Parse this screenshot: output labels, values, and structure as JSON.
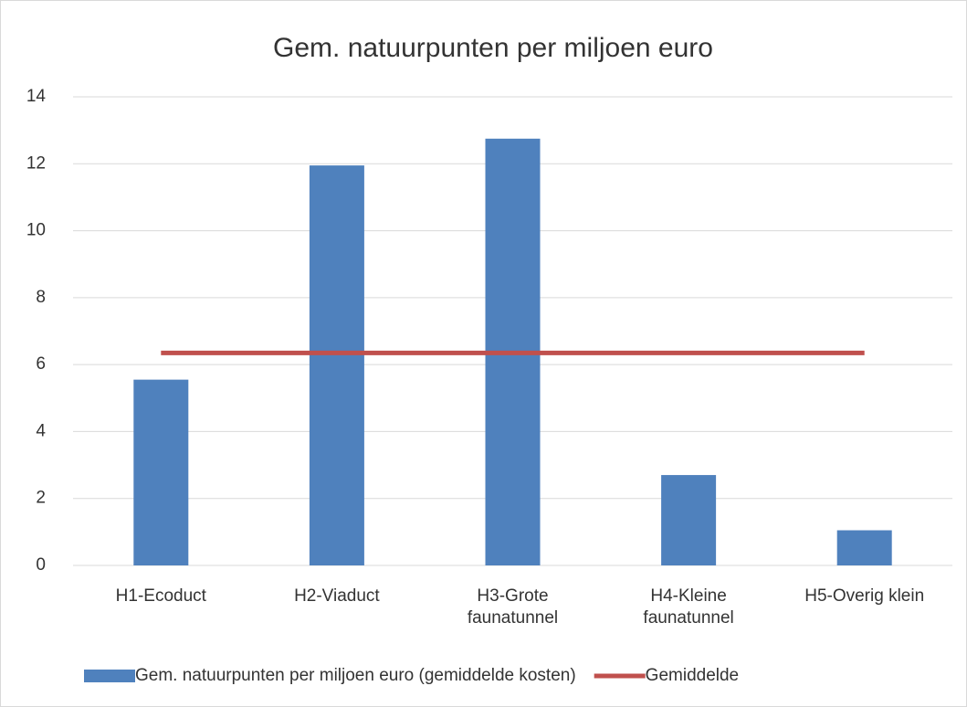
{
  "chart_data": {
    "type": "bar",
    "title": "Gem. natuurpunten per miljoen euro",
    "categories": [
      "H1-Ecoduct",
      "H2-Viaduct",
      "H3-Grote faunatunnel",
      "H4-Kleine faunatunnel",
      "H5-Overig klein"
    ],
    "series": [
      {
        "name": "Gem. natuurpunten per miljoen euro (gemiddelde kosten)",
        "type": "bar",
        "color": "#4f81bd",
        "values": [
          5.55,
          11.95,
          12.75,
          2.7,
          1.05
        ]
      },
      {
        "name": "Gemiddelde",
        "type": "line",
        "color": "#c0504d",
        "values": [
          6.35,
          6.35,
          6.35,
          6.35,
          6.35
        ]
      }
    ],
    "ylim": [
      0,
      14
    ],
    "yticks": [
      0,
      2,
      4,
      6,
      8,
      10,
      12,
      14
    ],
    "grid": true,
    "legend": "bottom"
  }
}
